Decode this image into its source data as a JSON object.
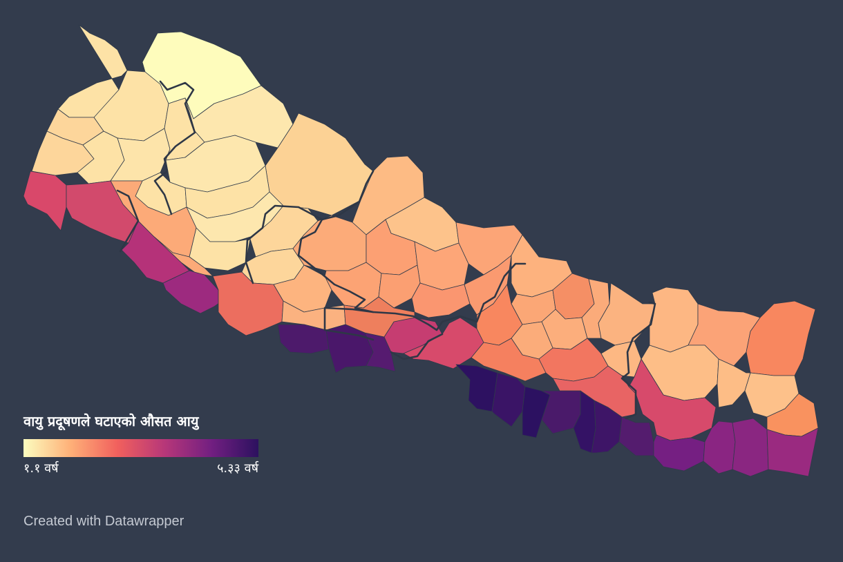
{
  "legend": {
    "title": "वायु प्रदूषणले घटाएको औसत आयु",
    "min_label": "१.१ वर्ष",
    "max_label": "५.३३ वर्ष",
    "min_value": 1.1,
    "max_value": 5.33,
    "colors": [
      "#fcfdbf",
      "#feb078",
      "#f1605d",
      "#b73779",
      "#721f81",
      "#2c115f"
    ]
  },
  "credit": "Created with Datawrapper"
}
